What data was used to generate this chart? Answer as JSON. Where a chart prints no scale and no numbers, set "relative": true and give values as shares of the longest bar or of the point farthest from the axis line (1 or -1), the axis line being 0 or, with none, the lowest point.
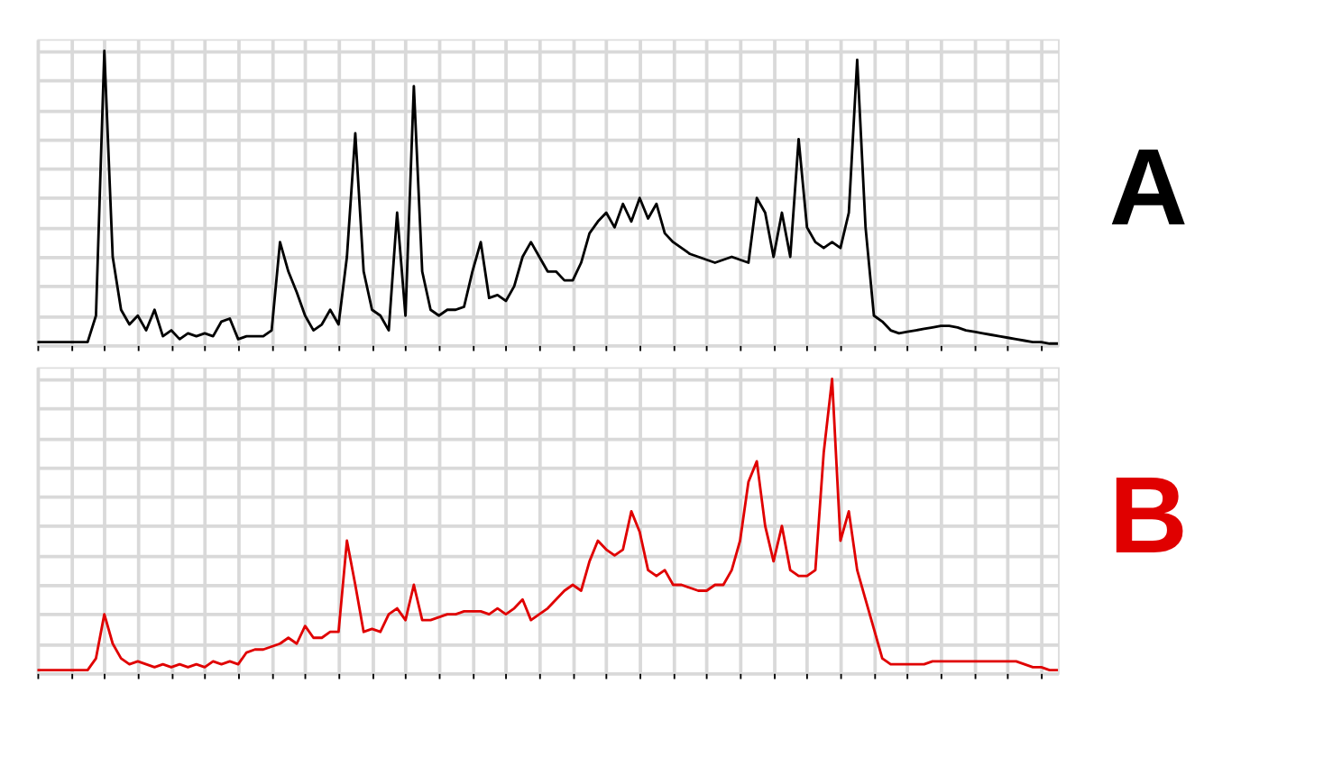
{
  "chart_data": [
    {
      "type": "line",
      "relative": true,
      "grid": true,
      "tick_labels": false,
      "annotations": [
        "A"
      ],
      "categories": [
        null,
        null,
        null,
        null,
        null,
        null,
        null,
        null,
        null,
        null,
        null,
        null,
        null,
        null,
        null,
        null,
        null,
        null,
        null,
        null,
        null,
        null,
        null,
        null,
        null,
        null,
        null,
        null,
        null,
        null,
        null,
        null,
        null,
        null,
        null,
        null,
        null,
        null,
        null,
        null,
        null,
        null,
        null,
        null,
        null,
        null,
        null,
        null,
        null,
        null,
        null,
        null,
        null,
        null,
        null,
        null,
        null,
        null,
        null,
        null,
        null,
        null,
        null,
        null,
        null,
        null,
        null,
        null,
        null,
        null,
        null,
        null,
        null,
        null,
        null,
        null,
        null,
        null,
        null,
        null,
        null,
        null,
        null,
        null,
        null,
        null,
        null,
        null,
        null,
        null,
        null,
        null,
        null,
        null,
        null,
        null,
        null,
        null,
        null,
        null,
        null,
        null,
        null,
        null,
        null,
        null,
        null,
        null,
        null,
        null,
        null,
        null,
        null,
        null,
        null,
        null,
        null,
        null,
        null,
        null,
        null,
        null,
        null
      ],
      "series": [
        {
          "color": "#000000",
          "values": [
            0.01,
            0.01,
            0.01,
            0.01,
            0.01,
            0.01,
            0.01,
            0.1,
            1.0,
            0.3,
            0.12,
            0.07,
            0.1,
            0.05,
            0.12,
            0.03,
            0.05,
            0.02,
            0.04,
            0.03,
            0.04,
            0.03,
            0.08,
            0.09,
            0.02,
            0.03,
            0.03,
            0.03,
            0.05,
            0.35,
            0.25,
            0.18,
            0.1,
            0.05,
            0.07,
            0.12,
            0.07,
            0.3,
            0.72,
            0.25,
            0.12,
            0.1,
            0.05,
            0.45,
            0.1,
            0.88,
            0.25,
            0.12,
            0.1,
            0.12,
            0.12,
            0.13,
            0.25,
            0.35,
            0.16,
            0.17,
            0.15,
            0.2,
            0.3,
            0.35,
            0.3,
            0.25,
            0.25,
            0.22,
            0.22,
            0.28,
            0.38,
            0.42,
            0.45,
            0.4,
            0.48,
            0.42,
            0.5,
            0.43,
            0.48,
            0.38,
            0.35,
            0.33,
            0.31,
            0.3,
            0.29,
            0.28,
            0.29,
            0.3,
            0.29,
            0.28,
            0.5,
            0.45,
            0.3,
            0.45,
            0.3,
            0.7,
            0.4,
            0.35,
            0.33,
            0.35,
            0.33,
            0.45,
            0.97,
            0.4,
            0.1,
            0.08,
            0.05,
            0.04,
            0.045,
            0.05,
            0.055,
            0.06,
            0.065,
            0.065,
            0.06,
            0.05,
            0.045,
            0.04,
            0.035,
            0.03,
            0.025,
            0.02,
            0.015,
            0.01,
            0.01,
            0.005,
            0.005
          ]
        }
      ]
    },
    {
      "type": "line",
      "relative": true,
      "grid": true,
      "tick_labels": false,
      "annotations": [
        "B"
      ],
      "categories": [
        null,
        null,
        null,
        null,
        null,
        null,
        null,
        null,
        null,
        null,
        null,
        null,
        null,
        null,
        null,
        null,
        null,
        null,
        null,
        null,
        null,
        null,
        null,
        null,
        null,
        null,
        null,
        null,
        null,
        null,
        null,
        null,
        null,
        null,
        null,
        null,
        null,
        null,
        null,
        null,
        null,
        null,
        null,
        null,
        null,
        null,
        null,
        null,
        null,
        null,
        null,
        null,
        null,
        null,
        null,
        null,
        null,
        null,
        null,
        null,
        null,
        null,
        null,
        null,
        null,
        null,
        null,
        null,
        null,
        null,
        null,
        null,
        null,
        null,
        null,
        null,
        null,
        null,
        null,
        null,
        null,
        null,
        null,
        null,
        null,
        null,
        null,
        null,
        null,
        null,
        null,
        null,
        null,
        null,
        null,
        null,
        null,
        null,
        null,
        null,
        null,
        null,
        null,
        null,
        null,
        null,
        null,
        null,
        null,
        null,
        null,
        null,
        null,
        null,
        null,
        null,
        null,
        null,
        null,
        null,
        null,
        null,
        null
      ],
      "series": [
        {
          "color": "#e00000",
          "values": [
            0.01,
            0.01,
            0.01,
            0.01,
            0.01,
            0.01,
            0.01,
            0.05,
            0.2,
            0.1,
            0.05,
            0.03,
            0.04,
            0.03,
            0.02,
            0.03,
            0.02,
            0.03,
            0.02,
            0.03,
            0.02,
            0.04,
            0.03,
            0.04,
            0.03,
            0.07,
            0.08,
            0.08,
            0.09,
            0.1,
            0.12,
            0.1,
            0.16,
            0.12,
            0.12,
            0.14,
            0.14,
            0.45,
            0.3,
            0.14,
            0.15,
            0.14,
            0.2,
            0.22,
            0.18,
            0.3,
            0.18,
            0.18,
            0.19,
            0.2,
            0.2,
            0.21,
            0.21,
            0.21,
            0.2,
            0.22,
            0.2,
            0.22,
            0.25,
            0.18,
            0.2,
            0.22,
            0.25,
            0.28,
            0.3,
            0.28,
            0.38,
            0.45,
            0.42,
            0.4,
            0.42,
            0.55,
            0.48,
            0.35,
            0.33,
            0.35,
            0.3,
            0.3,
            0.29,
            0.28,
            0.28,
            0.3,
            0.3,
            0.35,
            0.45,
            0.65,
            0.72,
            0.5,
            0.38,
            0.5,
            0.35,
            0.33,
            0.33,
            0.35,
            0.75,
            1.0,
            0.45,
            0.55,
            0.35,
            0.25,
            0.15,
            0.05,
            0.03,
            0.03,
            0.03,
            0.03,
            0.03,
            0.04,
            0.04,
            0.04,
            0.04,
            0.04,
            0.04,
            0.04,
            0.04,
            0.04,
            0.04,
            0.04,
            0.03,
            0.02,
            0.02,
            0.01,
            0.01
          ]
        }
      ]
    }
  ]
}
